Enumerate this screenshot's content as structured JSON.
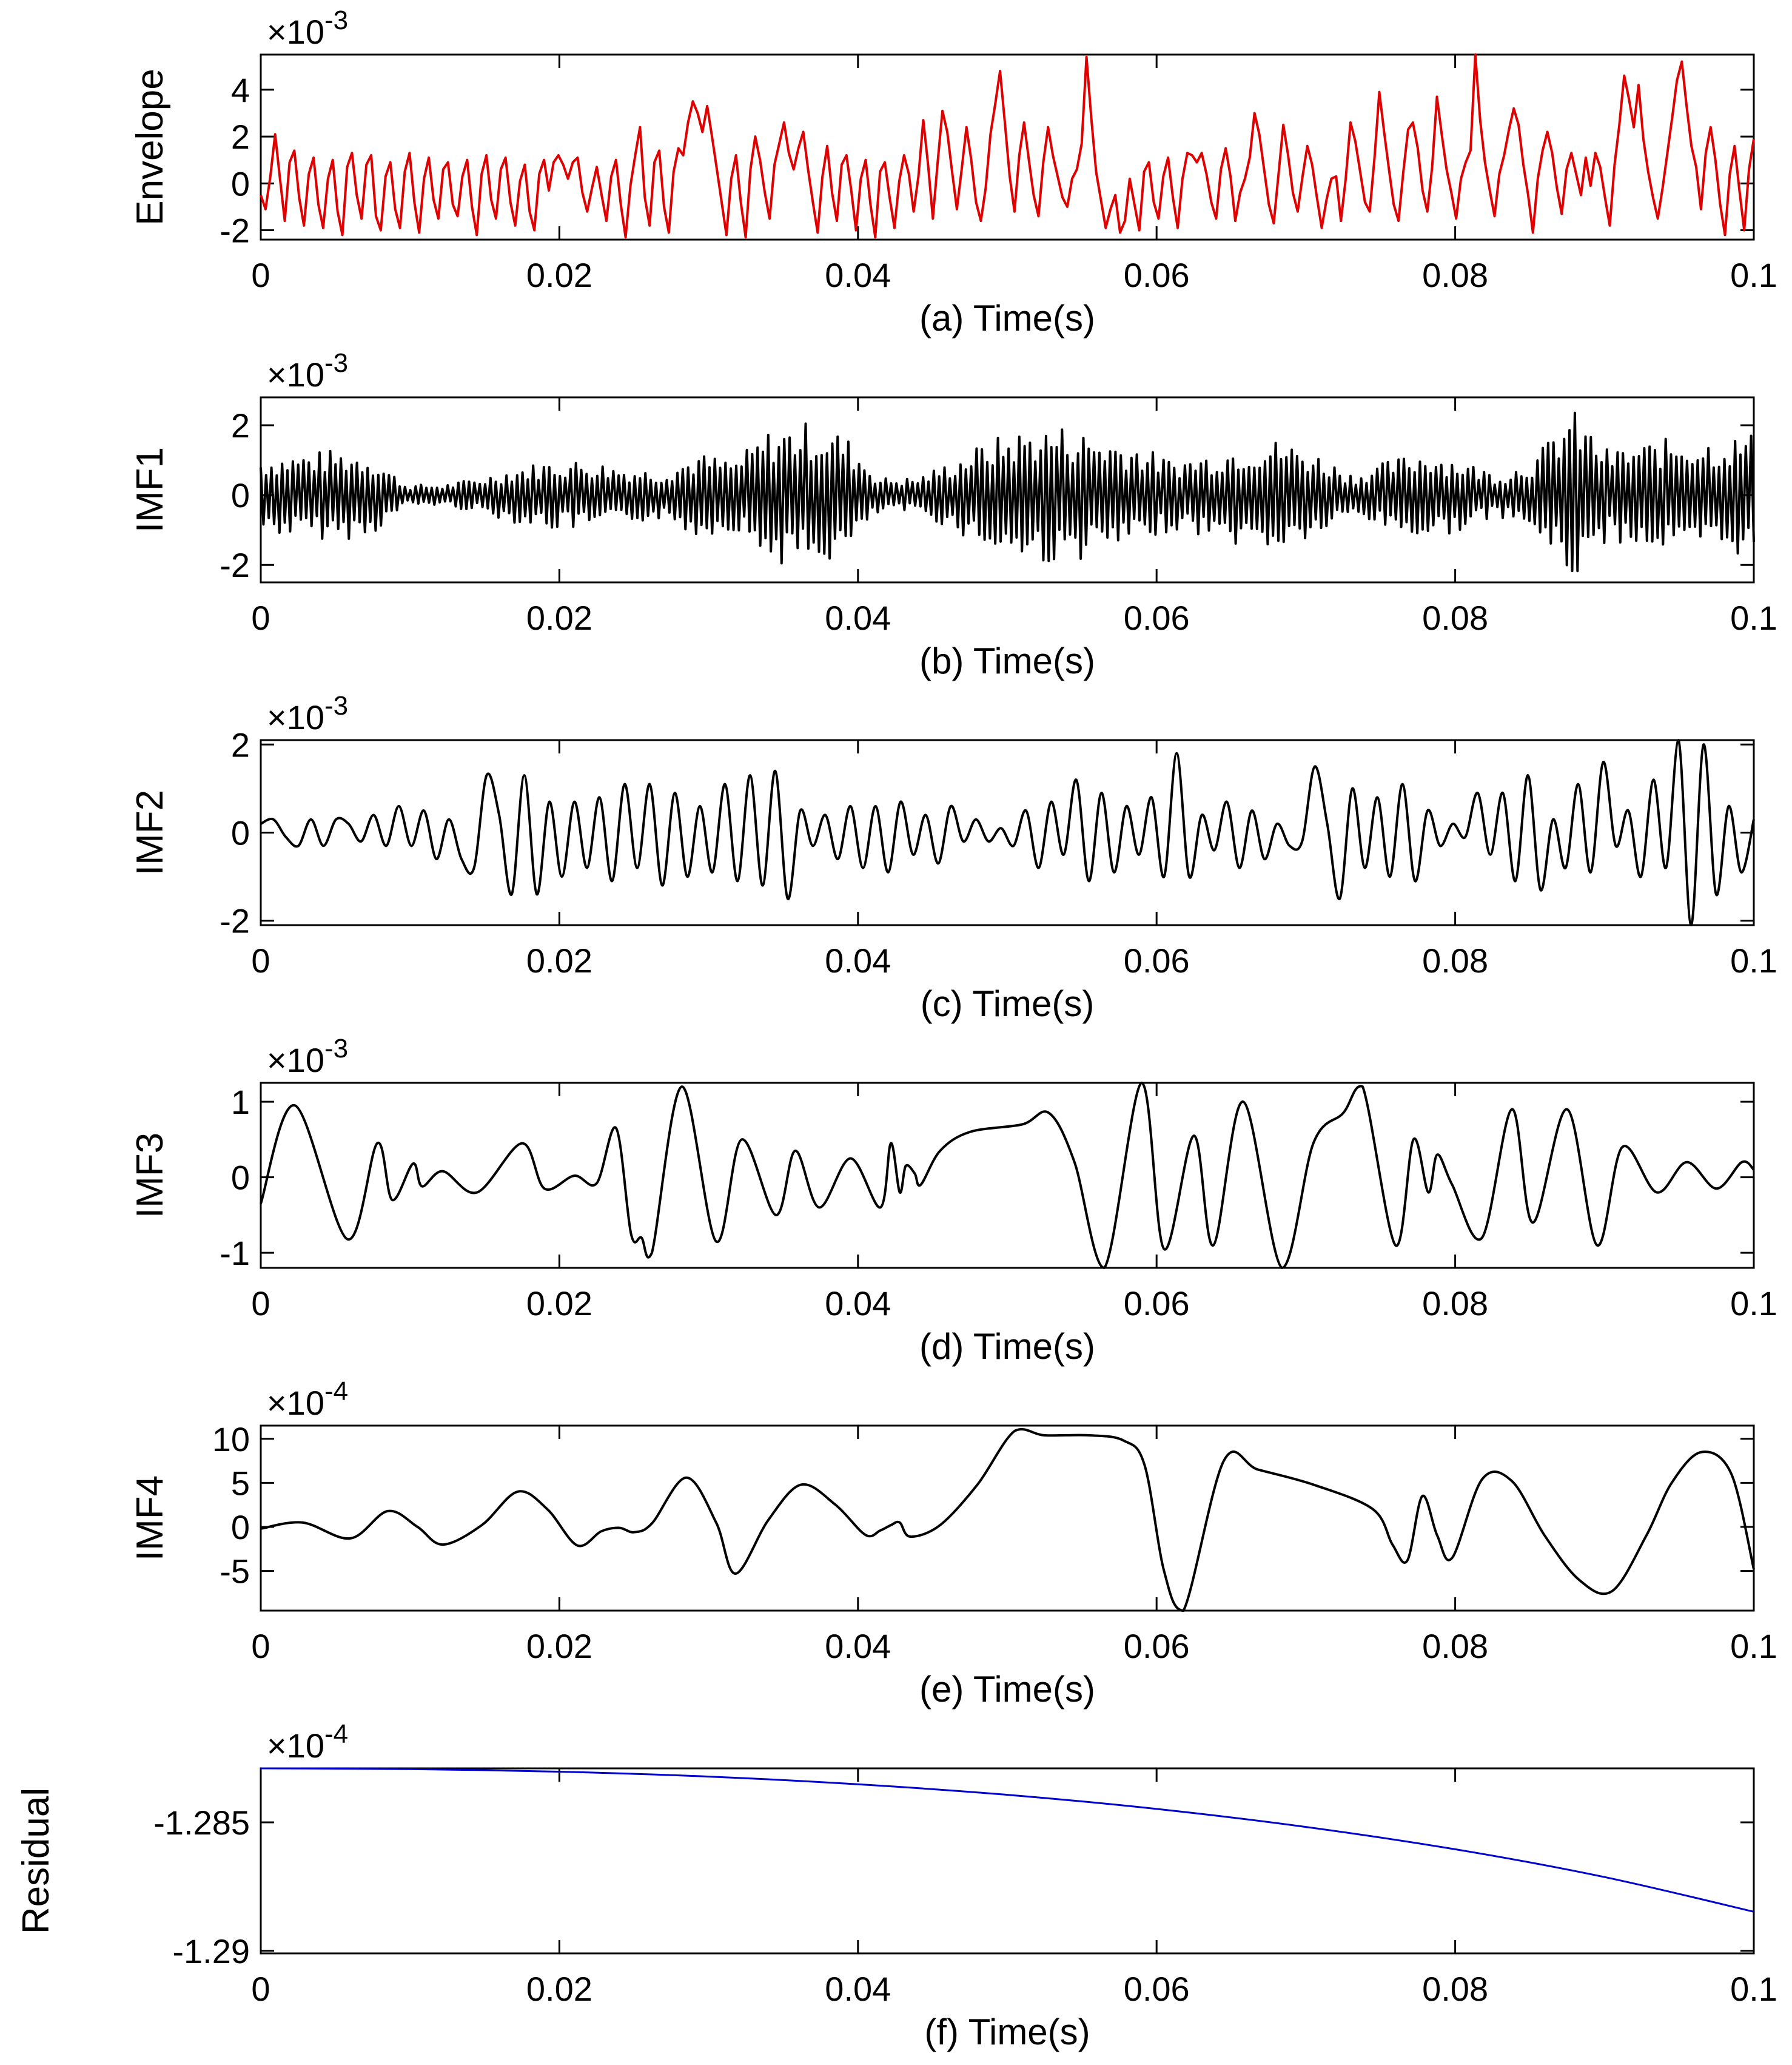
{
  "figure": {
    "type": "multi-panel line plot"
  },
  "chart_data": [
    {
      "type": "line",
      "panel": "a",
      "ylabel": "Envelope",
      "xlabel": "(a) Time(s)",
      "multiplier": {
        "base": "×10",
        "exponent": "-3"
      },
      "color": "#e00000",
      "xlim": [
        0,
        0.1
      ],
      "ylim": [
        -2.4,
        5.5
      ],
      "xticks": [
        0,
        0.02,
        0.04,
        0.06,
        0.08,
        0.1
      ],
      "xtick_labels": [
        "0",
        "0.02",
        "0.04",
        "0.06",
        "0.08",
        "0.1"
      ],
      "yticks": [
        -2,
        0,
        2,
        4
      ],
      "ytick_labels": [
        "-2",
        "0",
        "2",
        "4"
      ],
      "series": [
        {
          "name": "Envelope",
          "values": [
            -0.5,
            -1.1,
            0.3,
            2.1,
            0.2,
            -1.6,
            0.9,
            1.4,
            -0.6,
            -1.8,
            0.4,
            1.1,
            -0.9,
            -1.9,
            0.2,
            1.0,
            -1.2,
            -2.2,
            0.7,
            1.3,
            -0.5,
            -1.5,
            0.8,
            1.2,
            -1.4,
            -2.0,
            0.3,
            0.9,
            -1.1,
            -1.9,
            0.5,
            1.3,
            -0.8,
            -2.1,
            0.2,
            1.1,
            -0.7,
            -1.5,
            0.6,
            0.9,
            -0.9,
            -1.4,
            0.3,
            1.0,
            -1.0,
            -2.2,
            0.4,
            1.2,
            -0.7,
            -1.5,
            0.6,
            1.1,
            -0.8,
            -1.8,
            0.1,
            0.8,
            -1.2,
            -2.0,
            0.4,
            1.0,
            -0.3,
            0.9,
            1.2,
            0.8,
            0.2,
            0.9,
            1.1,
            -0.4,
            -1.2,
            -0.2,
            0.7,
            -0.5,
            -1.6,
            0.3,
            1.0,
            -0.9,
            -2.3,
            -0.1,
            1.2,
            2.4,
            -0.6,
            -1.8,
            0.9,
            1.4,
            -1.0,
            -2.1,
            0.5,
            1.5,
            1.2,
            2.6,
            3.5,
            3.0,
            2.2,
            3.3,
            2.0,
            0.6,
            -0.8,
            -2.2,
            0.2,
            1.2,
            -0.8,
            -2.3,
            0.6,
            2.0,
            1.0,
            -0.4,
            -1.5,
            0.8,
            1.7,
            2.6,
            1.3,
            0.6,
            1.5,
            2.2,
            0.6,
            -0.8,
            -2.1,
            0.3,
            1.6,
            -0.4,
            -1.6,
            0.8,
            1.2,
            -0.3,
            -2.0,
            0.2,
            1.0,
            -0.9,
            -2.3,
            0.5,
            0.9,
            -0.6,
            -1.9,
            0.1,
            1.2,
            0.4,
            -1.2,
            0.3,
            2.7,
            0.8,
            -1.5,
            0.9,
            3.1,
            2.2,
            0.5,
            -1.1,
            0.6,
            2.4,
            1.0,
            -0.8,
            -1.6,
            -0.2,
            2.1,
            3.4,
            4.8,
            2.6,
            0.3,
            -1.2,
            1.2,
            2.6,
            1.0,
            -0.5,
            -1.4,
            0.9,
            2.4,
            1.2,
            0.3,
            -0.6,
            -1.0,
            0.2,
            0.6,
            1.7,
            5.4,
            2.8,
            0.5,
            -0.7,
            -1.9,
            -1.1,
            -0.5,
            -2.1,
            -1.6,
            0.2,
            -0.9,
            -2.0,
            0.5,
            0.9,
            -0.8,
            -1.5,
            0.3,
            1.1,
            -0.6,
            -1.9,
            0.2,
            1.3,
            1.2,
            0.9,
            1.3,
            0.4,
            -0.8,
            -1.5,
            0.6,
            1.5,
            0.3,
            -1.6,
            -0.4,
            0.2,
            1.1,
            3.0,
            2.1,
            0.6,
            -0.9,
            -1.7,
            0.4,
            2.5,
            1.2,
            -0.4,
            -1.2,
            0.3,
            1.6,
            0.8,
            -0.6,
            -1.9,
            -0.7,
            0.2,
            0.3,
            -1.6,
            0.2,
            2.6,
            1.8,
            0.5,
            -0.8,
            -1.2,
            1.1,
            3.9,
            2.2,
            0.6,
            -0.9,
            -1.6,
            0.5,
            2.3,
            2.6,
            1.5,
            -0.3,
            -1.2,
            0.7,
            3.7,
            2.1,
            0.6,
            -0.4,
            -1.5,
            0.2,
            0.9,
            1.4,
            5.6,
            2.7,
            0.9,
            -0.3,
            -1.4,
            0.4,
            1.2,
            2.3,
            3.2,
            2.5,
            0.8,
            -0.5,
            -2.1,
            0.2,
            1.4,
            2.2,
            1.3,
            -0.2,
            -1.3,
            0.6,
            1.3,
            0.4,
            -0.5,
            1.1,
            -0.1,
            1.3,
            0.7,
            -0.6,
            -1.8,
            0.8,
            2.5,
            4.6,
            3.6,
            2.4,
            4.2,
            1.9,
            0.5,
            -0.6,
            -1.5,
            -0.2,
            1.3,
            2.8,
            4.4,
            5.2,
            3.3,
            1.6,
            0.7,
            -1.1,
            1.3,
            2.4,
            1.0,
            -0.9,
            -2.2,
            0.4,
            1.6,
            -0.3,
            -2.0,
            0.6,
            1.9
          ]
        }
      ]
    },
    {
      "type": "line",
      "panel": "b",
      "ylabel": "IMF1",
      "xlabel": "(b) Time(s)",
      "multiplier": {
        "base": "×10",
        "exponent": "-3"
      },
      "color": "#000000",
      "xlim": [
        0,
        0.1
      ],
      "ylim": [
        -2.5,
        2.8
      ],
      "xticks": [
        0,
        0.02,
        0.04,
        0.06,
        0.08,
        0.1
      ],
      "xtick_labels": [
        "0",
        "0.02",
        "0.04",
        "0.06",
        "0.08",
        "0.1"
      ],
      "yticks": [
        -2,
        0,
        2
      ],
      "ytick_labels": [
        "-2",
        "0",
        "2"
      ],
      "series": [
        {
          "name": "IMF1",
          "amplitude_envelope": [
            1.1,
            1.2,
            1.3,
            1.2,
            0.3,
            0.3,
            0.5,
            0.8,
            1.0,
            1.0,
            0.8,
            0.7,
            1.2,
            1.0,
            1.9,
            2.1,
            1.8,
            0.5,
            0.5,
            1.0,
            1.6,
            1.9,
            2.0,
            1.7,
            1.5,
            1.0,
            1.2,
            1.5,
            1.6,
            1.2,
            0.6,
            1.0,
            1.3,
            1.0,
            0.6,
            1.1,
            2.5,
            1.3,
            1.5,
            1.7,
            1.6,
            1.8
          ]
        }
      ]
    },
    {
      "type": "line",
      "panel": "c",
      "ylabel": "IMF2",
      "xlabel": "(c) Time(s)",
      "multiplier": {
        "base": "×10",
        "exponent": "-3"
      },
      "color": "#000000",
      "xlim": [
        0,
        0.1
      ],
      "ylim": [
        -2.1,
        2.1
      ],
      "xticks": [
        0,
        0.02,
        0.04,
        0.06,
        0.08,
        0.1
      ],
      "xtick_labels": [
        "0",
        "0.02",
        "0.04",
        "0.06",
        "0.08",
        "0.1"
      ],
      "yticks": [
        -2,
        0,
        2
      ],
      "ytick_labels": [
        "-2",
        "0",
        "2"
      ],
      "series": [
        {
          "name": "IMF2",
          "values": [
            0.2,
            0.3,
            -0.1,
            -0.3,
            0.3,
            -0.3,
            0.3,
            0.2,
            -0.2,
            0.4,
            -0.3,
            0.6,
            -0.3,
            0.5,
            -0.6,
            0.3,
            -0.6,
            -0.8,
            1.3,
            0.4,
            -1.4,
            1.3,
            -1.4,
            0.7,
            -1.0,
            0.7,
            -0.8,
            0.8,
            -1.1,
            1.1,
            -0.8,
            1.1,
            -1.2,
            0.9,
            -1.0,
            0.6,
            -0.9,
            1.1,
            -1.1,
            1.3,
            -1.2,
            1.4,
            -1.5,
            0.5,
            -0.3,
            0.4,
            -0.6,
            0.6,
            -0.8,
            0.6,
            -0.9,
            0.7,
            -0.5,
            0.4,
            -0.7,
            0.6,
            -0.2,
            0.3,
            -0.2,
            0.1,
            -0.3,
            0.5,
            -0.8,
            0.7,
            -0.5,
            1.2,
            -1.1,
            0.9,
            -0.9,
            0.6,
            -0.5,
            0.8,
            -1.0,
            1.8,
            -1.0,
            0.4,
            -0.4,
            0.7,
            -0.8,
            0.5,
            -0.6,
            0.2,
            -0.3,
            -0.2,
            1.5,
            0.2,
            -1.5,
            1.0,
            -0.8,
            0.8,
            -1.0,
            1.1,
            -1.1,
            0.5,
            -0.3,
            0.2,
            -0.1,
            0.9,
            -0.5,
            0.9,
            -1.1,
            1.3,
            -1.3,
            0.3,
            -0.8,
            1.1,
            -0.9,
            1.6,
            -0.3,
            0.5,
            -1.0,
            1.2,
            -0.8,
            2.1,
            -2.2,
            2.0,
            -1.4,
            0.6,
            -0.9,
            0.3
          ]
        }
      ]
    },
    {
      "type": "line",
      "panel": "d",
      "ylabel": "IMF3",
      "xlabel": "(d) Time(s)",
      "multiplier": {
        "base": "×10",
        "exponent": "-3"
      },
      "color": "#000000",
      "xlim": [
        0,
        0.1
      ],
      "ylim": [
        -1.2,
        1.25
      ],
      "xticks": [
        0,
        0.02,
        0.04,
        0.06,
        0.08,
        0.1
      ],
      "xtick_labels": [
        "0",
        "0.02",
        "0.04",
        "0.06",
        "0.08",
        "0.1"
      ],
      "yticks": [
        -1,
        0,
        1
      ],
      "ytick_labels": [
        "-1",
        "0",
        "1"
      ],
      "series": [
        {
          "name": "IMF3",
          "x": [
            0,
            0.0023,
            0.0058,
            0.0078,
            0.0088,
            0.0102,
            0.0108,
            0.0122,
            0.0145,
            0.0175,
            0.019,
            0.021,
            0.0225,
            0.0238,
            0.0248,
            0.0255,
            0.0262,
            0.0282,
            0.0305,
            0.0322,
            0.0345,
            0.0358,
            0.0374,
            0.0395,
            0.0415,
            0.0422,
            0.0428,
            0.0432,
            0.0438,
            0.0442,
            0.0455,
            0.0475,
            0.051,
            0.0528,
            0.0545,
            0.0565,
            0.059,
            0.0605,
            0.0625,
            0.0638,
            0.0658,
            0.0684,
            0.0705,
            0.0725,
            0.0738,
            0.076,
            0.0772,
            0.0782,
            0.0788,
            0.0798,
            0.0818,
            0.0838,
            0.0852,
            0.0875,
            0.0895,
            0.0912,
            0.0935,
            0.0955,
            0.0975,
            0.0992,
            0.1
          ],
          "values": [
            -0.35,
            0.95,
            -0.82,
            0.45,
            -0.3,
            0.18,
            -0.12,
            0.08,
            -0.2,
            0.45,
            -0.15,
            0.02,
            -0.08,
            0.65,
            -0.75,
            -0.8,
            -1.0,
            1.2,
            -0.85,
            0.5,
            -0.5,
            0.35,
            -0.4,
            0.25,
            -0.4,
            0.45,
            -0.2,
            0.15,
            0.05,
            -0.1,
            0.35,
            0.6,
            0.7,
            0.85,
            0.2,
            -1.2,
            1.25,
            -0.95,
            0.55,
            -0.9,
            1.0,
            -1.2,
            0.45,
            0.85,
            1.2,
            -0.9,
            0.5,
            -0.2,
            0.3,
            -0.1,
            -0.8,
            0.9,
            -0.6,
            0.9,
            -0.9,
            0.4,
            -0.2,
            0.2,
            -0.15,
            0.2,
            0.1
          ]
        }
      ]
    },
    {
      "type": "line",
      "panel": "e",
      "ylabel": "IMF4",
      "xlabel": "(e) Time(s)",
      "multiplier": {
        "base": "×10",
        "exponent": "-4"
      },
      "color": "#000000",
      "xlim": [
        0,
        0.1
      ],
      "ylim": [
        -9.5,
        11.5
      ],
      "xticks": [
        0,
        0.02,
        0.04,
        0.06,
        0.08,
        0.1
      ],
      "xtick_labels": [
        "0",
        "0.02",
        "0.04",
        "0.06",
        "0.08",
        "0.1"
      ],
      "yticks": [
        -5,
        0,
        5,
        10
      ],
      "ytick_labels": [
        "-5",
        "0",
        "5",
        "10"
      ],
      "series": [
        {
          "name": "IMF4",
          "x": [
            0,
            0.0028,
            0.006,
            0.0085,
            0.0105,
            0.0122,
            0.0148,
            0.0172,
            0.0192,
            0.0212,
            0.0228,
            0.024,
            0.025,
            0.0262,
            0.0285,
            0.0305,
            0.0318,
            0.034,
            0.0362,
            0.0385,
            0.0405,
            0.0415,
            0.0422,
            0.0428,
            0.0435,
            0.0455,
            0.048,
            0.0505,
            0.0525,
            0.0555,
            0.0578,
            0.0592,
            0.0605,
            0.0618,
            0.0645,
            0.0668,
            0.0705,
            0.0745,
            0.0758,
            0.0768,
            0.0778,
            0.0788,
            0.0798,
            0.0818,
            0.0838,
            0.086,
            0.0883,
            0.0905,
            0.0928,
            0.0945,
            0.0965,
            0.0985,
            0.1
          ],
          "values": [
            -0.2,
            0.5,
            -1.3,
            1.8,
            0.0,
            -2.0,
            0.2,
            4.0,
            2.0,
            -2.1,
            -0.5,
            -0.1,
            -0.6,
            0.4,
            5.6,
            0.5,
            -5.3,
            0.8,
            4.8,
            2.5,
            -0.9,
            -0.4,
            0.2,
            0.5,
            -1.1,
            0.2,
            4.8,
            10.9,
            10.4,
            10.4,
            9.8,
            7.0,
            -5.0,
            -9.5,
            7.5,
            6.5,
            4.8,
            2.0,
            -2.0,
            -3.8,
            3.5,
            -1.0,
            -3.5,
            5.4,
            5.2,
            -1.0,
            -6.0,
            -7.3,
            -1.0,
            5.0,
            8.5,
            6.0,
            -4.8
          ]
        }
      ]
    },
    {
      "type": "line",
      "panel": "f",
      "ylabel": "Residual",
      "xlabel": "(f) Time(s)",
      "multiplier": {
        "base": "×10",
        "exponent": "-4"
      },
      "color": "#0000cc",
      "xlim": [
        0,
        0.1
      ],
      "ylim": [
        -1.2901,
        -1.2829
      ],
      "xticks": [
        0,
        0.02,
        0.04,
        0.06,
        0.08,
        0.1
      ],
      "xtick_labels": [
        "0",
        "0.02",
        "0.04",
        "0.06",
        "0.08",
        "0.1"
      ],
      "yticks": [
        -1.29,
        -1.285
      ],
      "ytick_labels": [
        "-1.29",
        "-1.285"
      ],
      "series": [
        {
          "name": "Residual",
          "x": [
            0,
            0.01,
            0.02,
            0.03,
            0.04,
            0.05,
            0.06,
            0.07,
            0.08,
            0.09,
            0.1
          ],
          "values": [
            -1.2829,
            -1.28293,
            -1.28303,
            -1.28322,
            -1.28352,
            -1.28393,
            -1.28448,
            -1.28518,
            -1.28605,
            -1.28713,
            -1.28848
          ]
        }
      ]
    }
  ]
}
